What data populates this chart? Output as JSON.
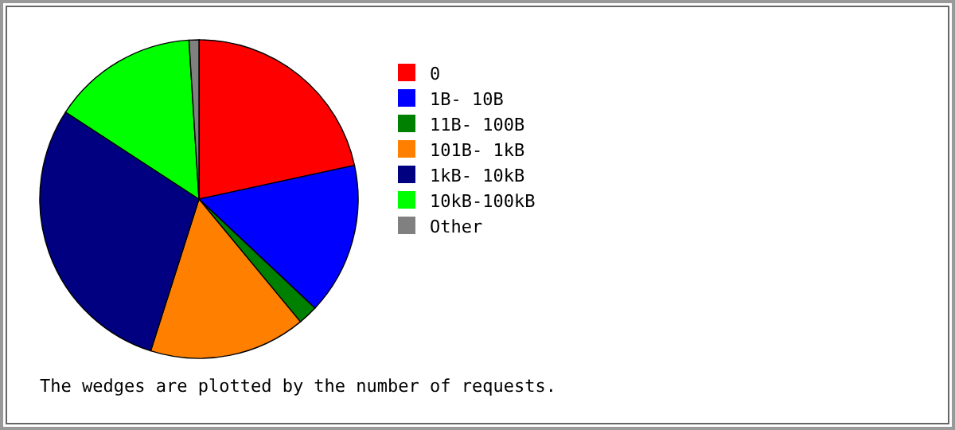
{
  "chart_data": {
    "type": "pie",
    "categories": [
      "0",
      "1B- 10B",
      "11B- 100B",
      "101B- 1kB",
      "1kB- 10kB",
      "10kB-100kB",
      "Other"
    ],
    "values": [
      21.6,
      15.4,
      2,
      15.9,
      29.3,
      14.8,
      1
    ],
    "colors": [
      "#ff0000",
      "#0000ff",
      "#008000",
      "#ff8000",
      "#000080",
      "#00ff00",
      "#808080"
    ],
    "legend": "right",
    "annotations": [
      "The wedges are plotted by the number of requests."
    ]
  }
}
